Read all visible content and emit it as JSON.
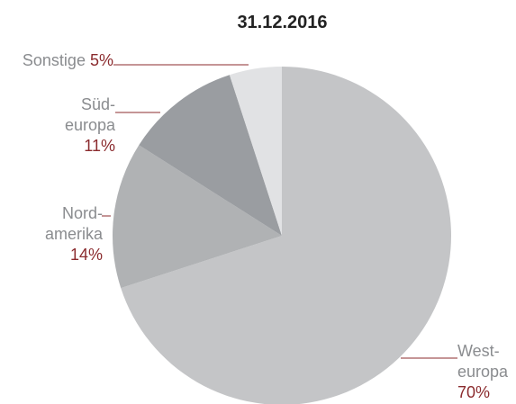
{
  "chart_data": {
    "type": "pie",
    "title": "31.12.2016",
    "categories": [
      "West-\neuropa",
      "Nord-\namerika",
      "Süd-\neuropa",
      "Sonstige"
    ],
    "values": [
      70,
      14,
      11,
      5
    ],
    "value_labels": [
      "70%",
      "14%",
      "11%",
      "5%"
    ],
    "colors": [
      "#c4c5c7",
      "#b0b2b4",
      "#9a9da1",
      "#e1e2e4"
    ]
  }
}
